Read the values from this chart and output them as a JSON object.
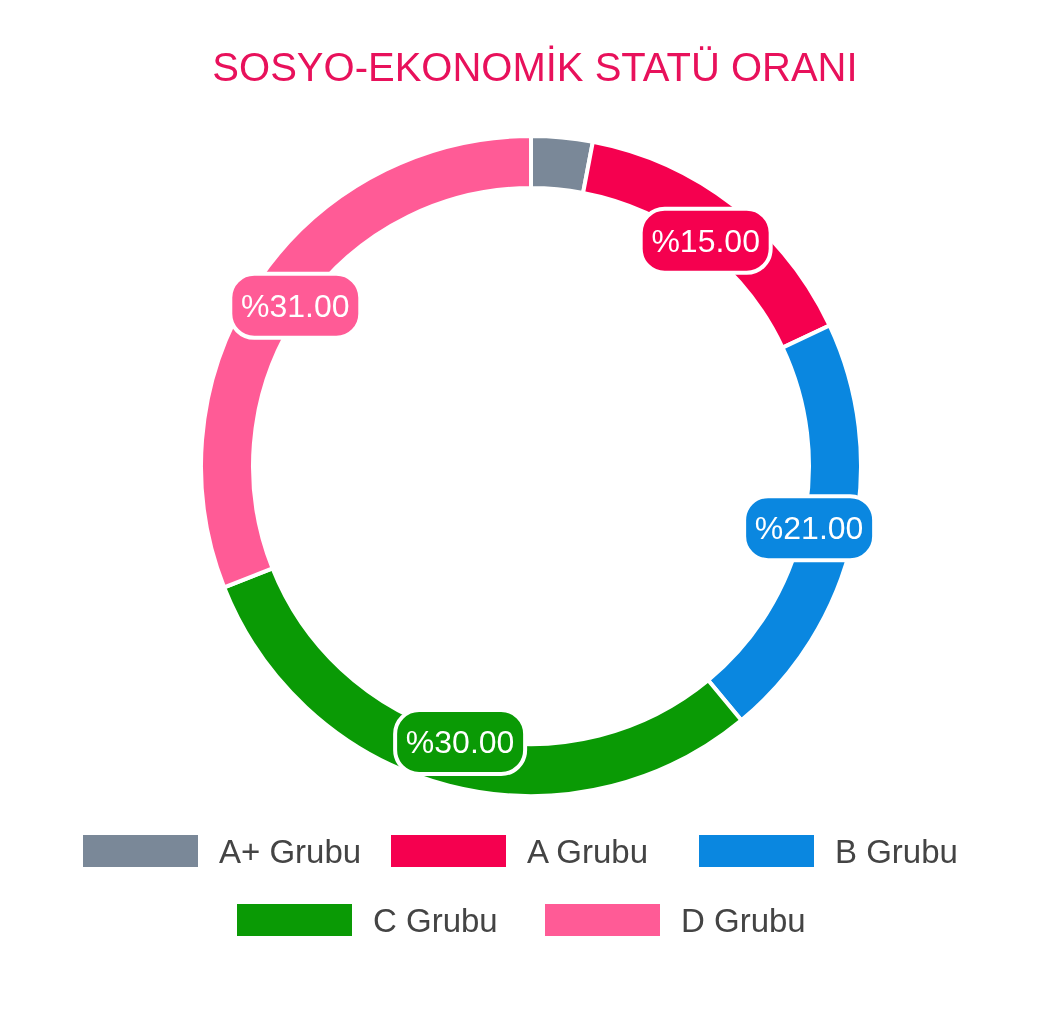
{
  "chart_data": {
    "type": "donut",
    "title": "SOSYO-EKONOMİK STATÜ ORANI",
    "categories": [
      "A+ Grubu",
      "A Grubu",
      "B Grubu",
      "C Grubu",
      "D Grubu"
    ],
    "values": [
      3,
      15,
      21,
      30,
      31
    ],
    "colors": [
      "#7a8898",
      "#f5004f",
      "#0a87e0",
      "#0a9a05",
      "#ff5b96"
    ],
    "value_labels": [
      null,
      "%15.00",
      "%21.00",
      "%30.00",
      "%31.00"
    ],
    "legend": "bottom"
  }
}
